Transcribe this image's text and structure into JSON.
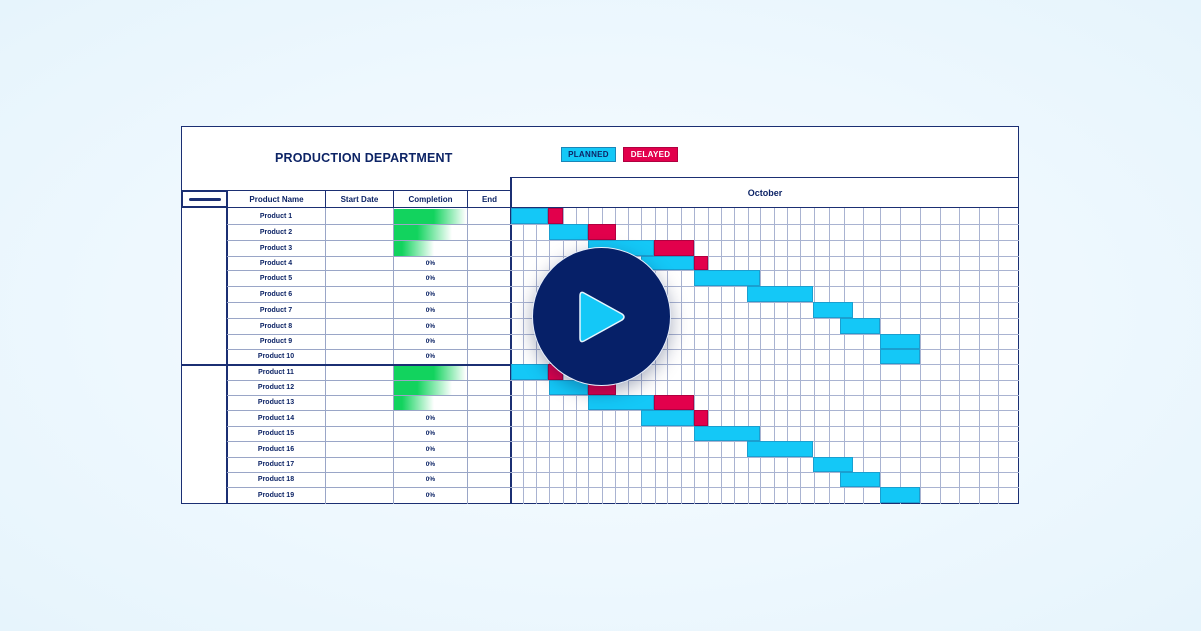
{
  "header": {
    "title": "PRODUCTION DEPARTMENT",
    "legend": [
      {
        "label": "PLANNED",
        "color": "#14c8f7"
      },
      {
        "label": "DELAYED",
        "color": "#e2004c"
      }
    ],
    "month": "October"
  },
  "table": {
    "columns": [
      "Product Name",
      "Start Date",
      "Completion",
      "End"
    ],
    "rows": [
      {
        "name": "Product 1",
        "start": "",
        "completion": "",
        "end": ""
      },
      {
        "name": "Product 2",
        "start": "",
        "completion": "",
        "end": ""
      },
      {
        "name": "Product 3",
        "start": "",
        "completion": "",
        "end": ""
      },
      {
        "name": "Product 4",
        "start": "",
        "completion": "0%",
        "end": ""
      },
      {
        "name": "Product 5",
        "start": "",
        "completion": "0%",
        "end": ""
      },
      {
        "name": "Product 6",
        "start": "",
        "completion": "0%",
        "end": ""
      },
      {
        "name": "Product 7",
        "start": "",
        "completion": "0%",
        "end": ""
      },
      {
        "name": "Product 8",
        "start": "",
        "completion": "0%",
        "end": ""
      },
      {
        "name": "Product 9",
        "start": "",
        "completion": "0%",
        "end": ""
      },
      {
        "name": "Product 10",
        "start": "",
        "completion": "0%",
        "end": ""
      },
      {
        "name": "Product 11",
        "start": "",
        "completion": "",
        "end": ""
      },
      {
        "name": "Product 12",
        "start": "",
        "completion": "",
        "end": ""
      },
      {
        "name": "Product 13",
        "start": "",
        "completion": "",
        "end": ""
      },
      {
        "name": "Product 14",
        "start": "",
        "completion": "0%",
        "end": ""
      },
      {
        "name": "Product 15",
        "start": "",
        "completion": "0%",
        "end": ""
      },
      {
        "name": "Product 16",
        "start": "",
        "completion": "0%",
        "end": ""
      },
      {
        "name": "Product 17",
        "start": "",
        "completion": "0%",
        "end": ""
      },
      {
        "name": "Product 18",
        "start": "",
        "completion": "0%",
        "end": ""
      },
      {
        "name": "Product 19",
        "start": "",
        "completion": "0%",
        "end": ""
      }
    ]
  },
  "colors": {
    "navy": "#0d2466",
    "planned": "#14c8f7",
    "delayed": "#e2004c",
    "completion_green": "#12d35e",
    "play_bg": "#062068"
  },
  "play_button": {
    "icon": "play-icon"
  }
}
